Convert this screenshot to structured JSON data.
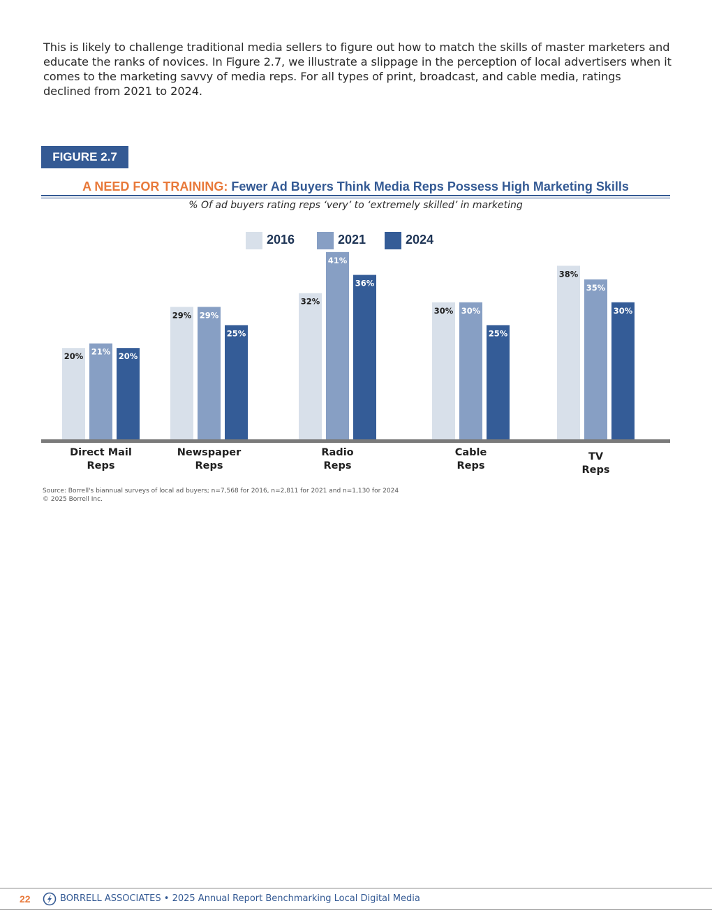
{
  "intro_text": "This is likely to challenge traditional media sellers to figure out how to match the skills of master marketers and educate the ranks of novices. In Figure 2.7, we illustrate a slippage in the perception of local advertisers when it comes to the marketing savvy of media reps. For all types of print, broadcast, and cable media, ratings declined from 2021 to 2024.",
  "figure": {
    "label": "FIGURE 2.7",
    "title_prefix": "A NEED FOR TRAINING:",
    "title_main": "Fewer Ad Buyers Think Media Reps Possess High Marketing Skills",
    "subtitle": "% Of ad buyers rating reps ‘very’ to ‘extremely skilled’ in marketing"
  },
  "chart_data": {
    "type": "bar",
    "title": "A NEED FOR TRAINING: Fewer Ad Buyers Think Media Reps Possess High Marketing Skills",
    "subtitle": "% Of ad buyers rating reps ‘very’ to ‘extremely skilled’ in marketing",
    "categories": [
      [
        "Direct Mail",
        "Reps"
      ],
      [
        "Newspaper",
        "Reps"
      ],
      [
        "Radio",
        "Reps"
      ],
      [
        "Cable",
        "Reps"
      ],
      [
        "TV",
        "Reps"
      ]
    ],
    "series": [
      {
        "name": "2016",
        "color": "#d8e0ea",
        "values": [
          20,
          29,
          32,
          30,
          38
        ]
      },
      {
        "name": "2021",
        "color": "#879fc4",
        "values": [
          21,
          29,
          41,
          30,
          35
        ]
      },
      {
        "name": "2024",
        "color": "#345c97",
        "values": [
          20,
          25,
          36,
          25,
          30
        ]
      }
    ],
    "value_suffix": "%",
    "ylim": [
      0,
      45
    ],
    "xlabel": "",
    "ylabel": "",
    "legend": "top-center",
    "grid": false
  },
  "source": {
    "line1": "Source: Borrell's biannual surveys of local ad buyers; n=7,568 for 2016, n=2,811 for 2021 and n=1,130 for 2024",
    "line2": "© 2025 Borrell Inc."
  },
  "footer": {
    "page_number": "22",
    "text": "BORRELL ASSOCIATES • 2025 Annual Report Benchmarking Local Digital Media",
    "accent_color": "#e8793a",
    "brand_color": "#345a94"
  }
}
